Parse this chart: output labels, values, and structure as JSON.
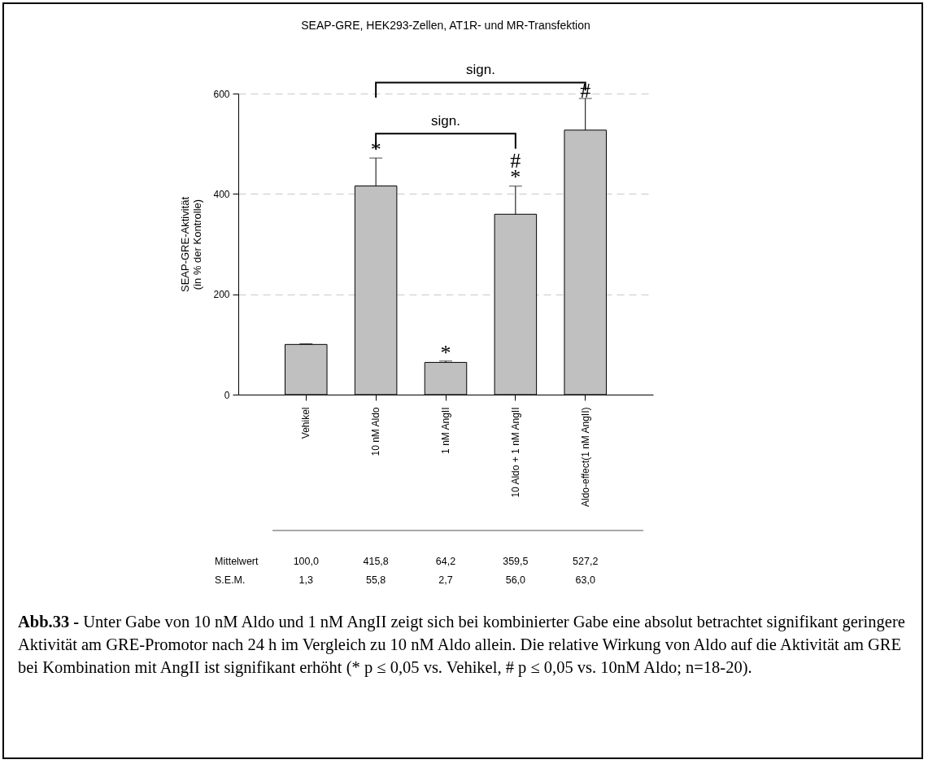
{
  "chart_data": {
    "type": "bar",
    "title": "SEAP-GRE, HEK293-Zellen, AT1R- und MR-Transfektion",
    "ylabel": "SEAP-GRE-Aktivität\n(in % der Kontrolle)",
    "categories": [
      "Vehikel",
      "10 nM Aldo",
      "1 nM AngII",
      "10 Aldo + 1 nM AngII",
      "Aldo-effect(1 nM AngII)"
    ],
    "values": [
      100.0,
      415.8,
      64.2,
      359.5,
      527.2
    ],
    "errors": [
      1.3,
      55.8,
      2.7,
      56.0,
      63.0
    ],
    "value_labels": [
      "100,0",
      "415,8",
      "64,2",
      "359,5",
      "527,2"
    ],
    "colors": [
      "#c0c0c0",
      "#c0c0c0",
      "#c0c0c0",
      "#c0c0c0",
      "#c0c0c0"
    ],
    "ylim": [
      0,
      600
    ],
    "yticks": [
      0,
      200,
      400,
      600
    ],
    "grid": "y",
    "annotations": [
      "sign.",
      "sign.",
      "Mittelwert",
      "S.E.M.",
      "1,3",
      "55,8",
      "2,7",
      "56,0",
      "63,0",
      "#",
      {
        "text": "*",
        "x": "10 nM Aldo",
        "y": 480
      },
      {
        "text": "*",
        "x": "1 nM AngII",
        "y": 75
      },
      {
        "text": "*",
        "x": "10 Aldo + 1 nM AngII",
        "y": 425
      },
      {
        "text": "#",
        "x": "Aldo-effect(1 nM AngII)",
        "y": 597
      },
      "Abb.33 - Unter Gabe von 10 nM Aldo und 1 nM AngII zeigt  sich bei kombinierter Gabe eine absolut betrachtet signifikant geringere Aktivität am GRE-Promotor nach 24 h im Vergleich zu 10 nM Aldo allein. Die relative Wirkung von Aldo auf die Aktivität am GRE bei Kombination mit AngII ist signifikant erhöht (* p ≤ 0,05 vs. Vehikel, # p ≤ 0,05 vs. 10nM Aldo; n=18-20)."
    ]
  }
}
